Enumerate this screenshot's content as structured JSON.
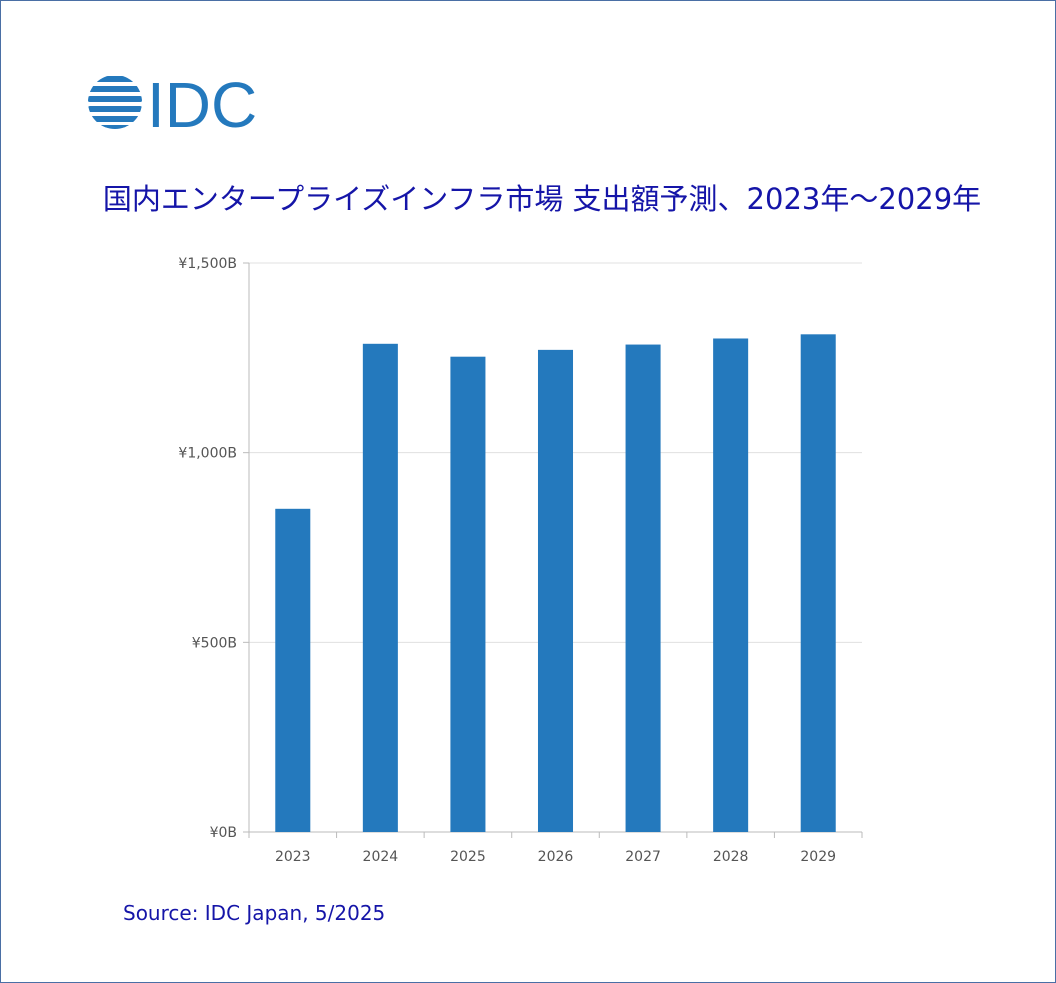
{
  "logo": {
    "text": "IDC",
    "color": "#2479bd"
  },
  "title": "国内エンタープライズインフラ市場 支出額予測、2023年～2029年",
  "source": "Source: IDC Japan, 5/2025",
  "chart_data": {
    "type": "bar",
    "categories": [
      "2023",
      "2024",
      "2025",
      "2026",
      "2027",
      "2028",
      "2029"
    ],
    "values": [
      852,
      1287,
      1253,
      1271,
      1285,
      1301,
      1312
    ],
    "ylim": [
      0,
      1500
    ],
    "yticks": [
      0,
      500,
      1000,
      1500
    ],
    "ytick_labels": [
      "¥0B",
      "¥500B",
      "¥1,000B",
      "¥1,500B"
    ],
    "xlabel": "",
    "ylabel": "",
    "grid": true,
    "bar_color": "#2479bd",
    "grid_color": "#e0e0e0",
    "axis_color": "#bbbbbb",
    "tick_label_color": "#555555"
  }
}
